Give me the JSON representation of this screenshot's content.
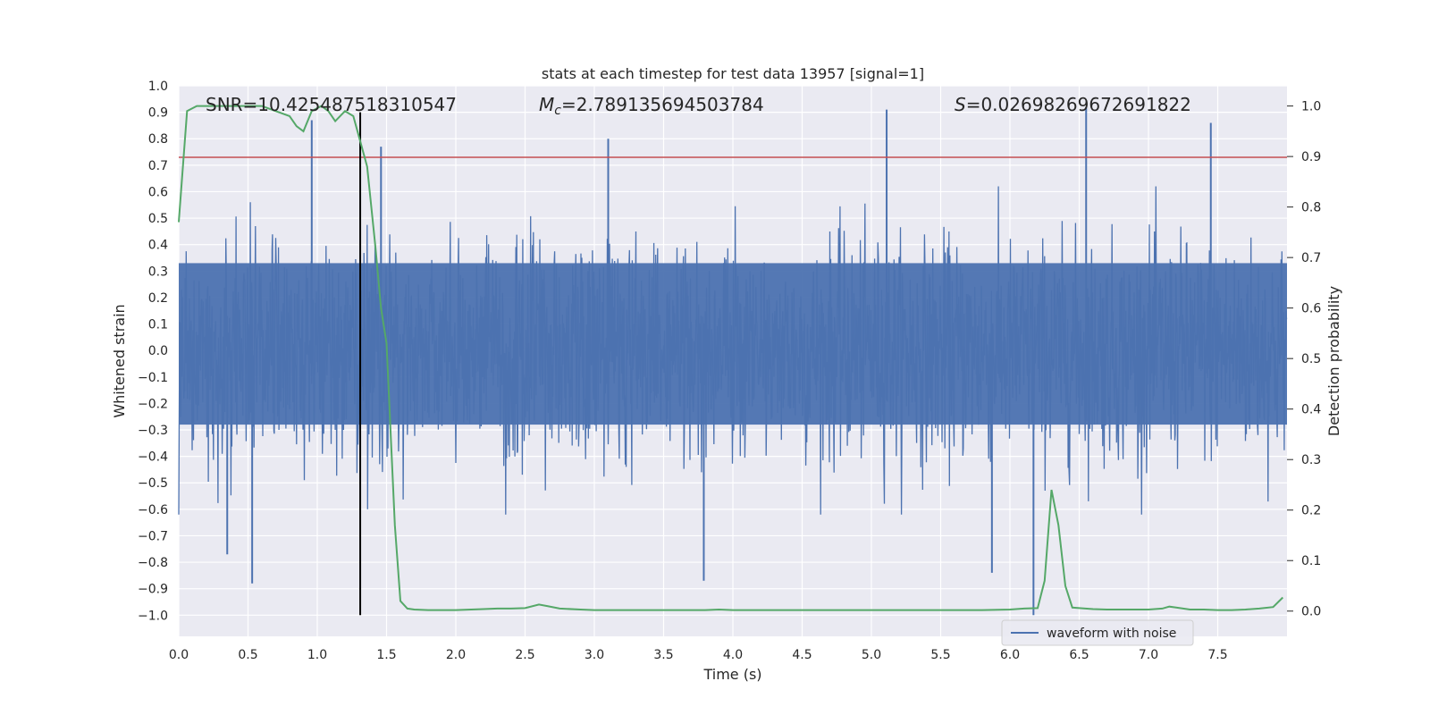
{
  "chart_data": {
    "type": "line",
    "title": "stats at each timestep for test data 13957 [signal=1]",
    "xlabel": "Time (s)",
    "ylabel_left": "Whitened strain",
    "ylabel_right": "Detection probability",
    "xlim": [
      0.0,
      8.0
    ],
    "ylim_left": [
      -1.08,
      1.0
    ],
    "ylim_right": [
      -0.05,
      1.04
    ],
    "x_ticks": [
      "0.0",
      "0.5",
      "1.0",
      "1.5",
      "2.0",
      "2.5",
      "3.0",
      "3.5",
      "4.0",
      "4.5",
      "5.0",
      "5.5",
      "6.0",
      "6.5",
      "7.0",
      "7.5"
    ],
    "y_ticks_left": [
      "1.0",
      "0.9",
      "0.8",
      "0.7",
      "0.6",
      "0.5",
      "0.4",
      "0.3",
      "0.2",
      "0.1",
      "0.0",
      "−0.1",
      "−0.2",
      "−0.3",
      "−0.4",
      "−0.5",
      "−0.6",
      "−0.7",
      "−0.8",
      "−0.9",
      "−1.0"
    ],
    "y_ticks_right": [
      "1.0",
      "0.9",
      "0.8",
      "0.7",
      "0.6",
      "0.5",
      "0.4",
      "0.3",
      "0.2",
      "0.1",
      "0.0"
    ],
    "annotations": {
      "snr": "SNR=10.425487518310547",
      "mc_symbol": "M",
      "mc_sub": "c",
      "mc_value": "=2.789135694503784",
      "s_symbol": "S",
      "s_value": "=0.02698269672691822"
    },
    "threshold_left": 0.73,
    "vertical_line": {
      "x": 1.31,
      "y_range": [
        -1.0,
        0.9
      ]
    },
    "legend": {
      "label": "waveform with noise",
      "placement": "lower-right"
    },
    "series": [
      {
        "name": "waveform with noise",
        "axis": "left",
        "color": "#4c72b0",
        "description": "dense noisy whitened strain, typical range about -0.5 to 0.55",
        "peaks": [
          {
            "x": 0.96,
            "y": 0.87
          },
          {
            "x": 1.46,
            "y": 0.77
          },
          {
            "x": 3.1,
            "y": 0.8
          },
          {
            "x": 5.11,
            "y": 0.91
          },
          {
            "x": 6.55,
            "y": 0.92
          },
          {
            "x": 7.45,
            "y": 0.86
          },
          {
            "x": 0.53,
            "y": -0.88
          },
          {
            "x": 3.79,
            "y": -0.87
          },
          {
            "x": 5.87,
            "y": -0.84
          },
          {
            "x": 6.17,
            "y": -1.0
          },
          {
            "x": 0.35,
            "y": -0.77
          }
        ]
      },
      {
        "name": "detection probability",
        "axis": "right",
        "color": "#55a868",
        "x": [
          0.0,
          0.06,
          0.13,
          0.2,
          0.3,
          0.4,
          0.5,
          0.6,
          0.7,
          0.8,
          0.85,
          0.9,
          0.96,
          1.03,
          1.08,
          1.13,
          1.2,
          1.26,
          1.31,
          1.36,
          1.42,
          1.46,
          1.5,
          1.56,
          1.6,
          1.65,
          1.7,
          1.8,
          1.9,
          2.0,
          2.2,
          2.3,
          2.4,
          2.5,
          2.6,
          2.66,
          2.75,
          2.9,
          3.0,
          3.2,
          3.4,
          3.6,
          3.8,
          3.9,
          4.0,
          4.2,
          4.4,
          4.6,
          4.8,
          5.0,
          5.2,
          5.4,
          5.6,
          5.8,
          6.0,
          6.1,
          6.2,
          6.25,
          6.3,
          6.35,
          6.4,
          6.45,
          6.5,
          6.6,
          6.7,
          6.8,
          6.9,
          7.0,
          7.1,
          7.15,
          7.2,
          7.3,
          7.4,
          7.5,
          7.6,
          7.7,
          7.8,
          7.9,
          7.97
        ],
        "values": [
          0.77,
          0.99,
          1.0,
          1.0,
          1.0,
          1.0,
          1.0,
          1.0,
          0.99,
          0.98,
          0.96,
          0.95,
          0.99,
          1.0,
          0.99,
          0.97,
          0.99,
          0.98,
          0.93,
          0.88,
          0.72,
          0.6,
          0.53,
          0.17,
          0.02,
          0.005,
          0.003,
          0.002,
          0.002,
          0.002,
          0.004,
          0.005,
          0.005,
          0.006,
          0.013,
          0.01,
          0.005,
          0.003,
          0.002,
          0.002,
          0.002,
          0.002,
          0.002,
          0.003,
          0.002,
          0.002,
          0.002,
          0.002,
          0.002,
          0.002,
          0.002,
          0.002,
          0.002,
          0.002,
          0.003,
          0.005,
          0.006,
          0.06,
          0.24,
          0.17,
          0.05,
          0.007,
          0.006,
          0.004,
          0.003,
          0.003,
          0.003,
          0.003,
          0.005,
          0.009,
          0.007,
          0.003,
          0.003,
          0.002,
          0.002,
          0.003,
          0.005,
          0.008,
          0.027
        ]
      }
    ]
  }
}
